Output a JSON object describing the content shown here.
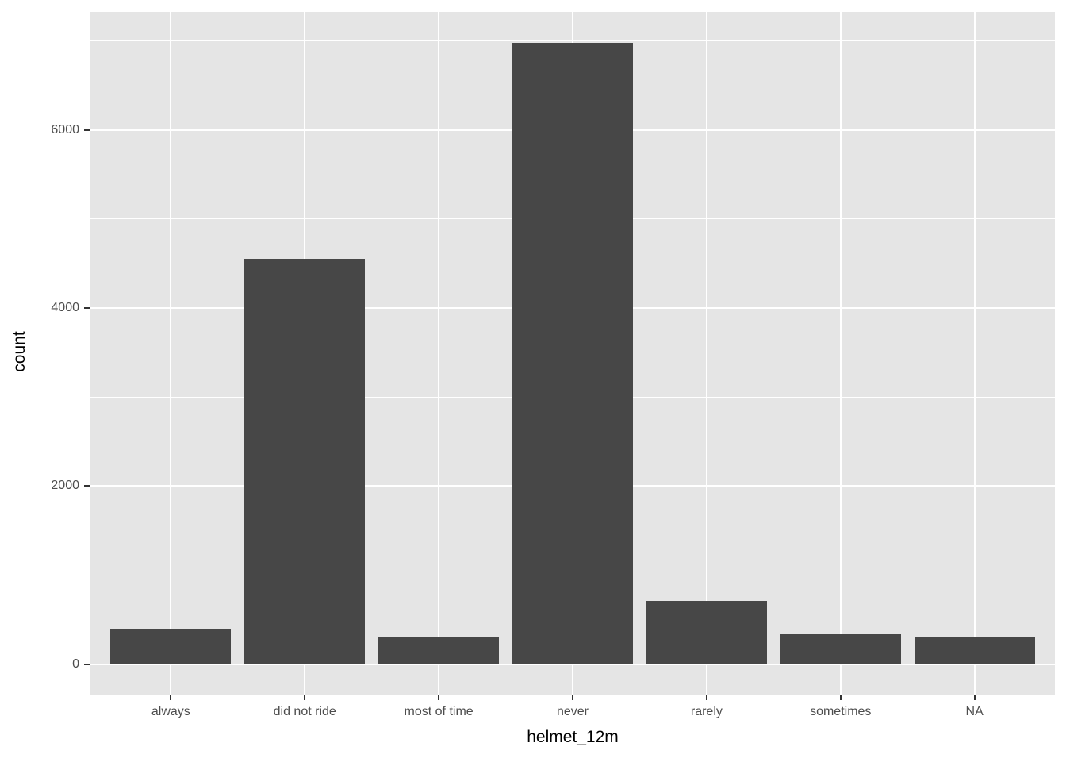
{
  "chart_data": {
    "type": "bar",
    "title": "",
    "xlabel": "helmet_12m",
    "ylabel": "count",
    "categories": [
      "always",
      "did not ride",
      "most of time",
      "never",
      "rarely",
      "sometimes",
      "NA"
    ],
    "values": [
      400,
      4550,
      300,
      6977,
      710,
      340,
      315
    ],
    "y_major_ticks": [
      0,
      2000,
      4000,
      6000
    ],
    "y_minor_gridlines": [
      1000,
      3000,
      5000,
      7000
    ],
    "ylim": [
      -349,
      7326
    ],
    "bar_rel_width": 0.9,
    "grid": "major and minor horizontal, major vertical at category centers",
    "legend": false,
    "theme": "ggplot2 grey",
    "colors": {
      "bar_fill": "#474747",
      "panel_background": "#E5E5E5",
      "gridline": "#FFFFFF",
      "axis_text": "#4D4D4D",
      "axis_title": "#000000",
      "tick_mark": "#333333",
      "figure_background": "#FFFFFF"
    }
  }
}
